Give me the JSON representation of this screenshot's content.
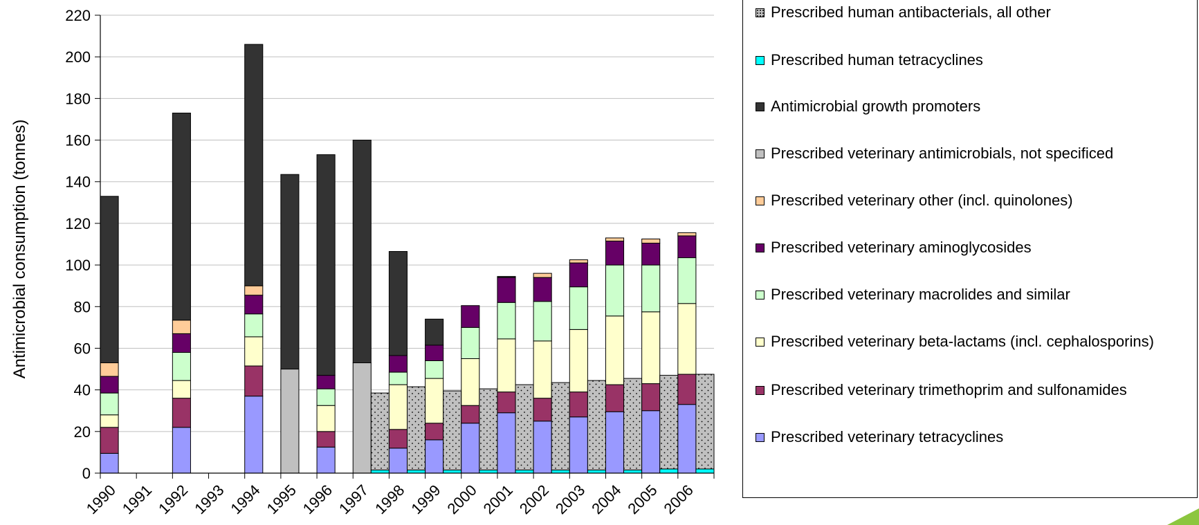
{
  "chart_data": {
    "type": "bar",
    "stacked": true,
    "ylabel": "Antimicrobial consumption  (tonnes)",
    "xlabel": "",
    "ylim": [
      0,
      220
    ],
    "yticks": [
      0,
      20,
      40,
      60,
      80,
      100,
      120,
      140,
      160,
      180,
      200,
      220
    ],
    "categories": [
      "1990",
      "1991",
      "1992",
      "1993",
      "1994",
      "1995",
      "1996",
      "1997",
      "1998",
      "1999",
      "2000",
      "2001",
      "2002",
      "2003",
      "2004",
      "2005",
      "2006"
    ],
    "gridlines": true,
    "legend_position": "right",
    "series": [
      {
        "name": "Prescribed veterinary tetracyclines",
        "group": "veterinary",
        "color": "#9999ff",
        "values": [
          9.5,
          null,
          22,
          null,
          37,
          null,
          12.5,
          null,
          12,
          16,
          24,
          29,
          25,
          27,
          29.5,
          30,
          33
        ]
      },
      {
        "name": "Prescribed veterinary trimethoprim and sulfonamides",
        "group": "veterinary",
        "color": "#993366",
        "values": [
          12.5,
          null,
          14,
          null,
          14.5,
          null,
          7.5,
          null,
          9,
          8,
          8.5,
          10,
          11,
          12,
          13,
          13,
          14.5
        ]
      },
      {
        "name": "Prescribed veterinary beta-lactams (incl. cephalosporins)",
        "group": "veterinary",
        "color": "#ffffcc",
        "values": [
          6,
          null,
          8.5,
          null,
          14,
          null,
          12.5,
          null,
          21.5,
          21.5,
          22.5,
          25.5,
          27.5,
          30,
          33,
          34.5,
          34
        ]
      },
      {
        "name": "Prescribed veterinary macrolides and similar",
        "group": "veterinary",
        "color": "#ccffcc",
        "values": [
          10.5,
          null,
          13.5,
          null,
          11,
          null,
          8,
          null,
          6,
          8.5,
          15,
          17.5,
          19,
          20.5,
          24.5,
          22.5,
          22
        ]
      },
      {
        "name": "Prescribed veterinary aminoglycosides",
        "group": "veterinary",
        "color": "#660066",
        "values": [
          8,
          null,
          9,
          null,
          9,
          null,
          6.5,
          null,
          8,
          7.5,
          10.5,
          12,
          11.5,
          11.5,
          11.5,
          10.5,
          10.5
        ]
      },
      {
        "name": "Prescribed veterinary other (incl. quinolones)",
        "group": "veterinary",
        "color": "#ffcc99",
        "values": [
          6.5,
          null,
          6.5,
          null,
          4.5,
          null,
          0,
          null,
          0,
          0,
          0,
          0,
          2,
          1.5,
          1.5,
          2,
          1.5
        ]
      },
      {
        "name": "Prescribed veterinary antimicrobials, not specificed",
        "group": "veterinary",
        "color": "#c0c0c0",
        "values": [
          null,
          null,
          null,
          null,
          null,
          50,
          null,
          53,
          null,
          null,
          null,
          null,
          null,
          null,
          null,
          null,
          null
        ]
      },
      {
        "name": "Antimicrobial growth promoters",
        "group": "veterinary",
        "color": "#333333",
        "values": [
          80,
          null,
          99.5,
          null,
          116,
          93.5,
          106,
          107,
          50,
          12.5,
          0,
          0.5,
          0,
          0,
          0,
          0,
          0
        ]
      },
      {
        "name": "Prescribed human tetracyclines",
        "group": "human",
        "color": "#00ffff",
        "values": [
          null,
          null,
          null,
          null,
          null,
          null,
          null,
          1.5,
          1.5,
          1.5,
          1.5,
          1.5,
          1.5,
          1.5,
          1.5,
          2,
          2
        ]
      },
      {
        "name": "Prescribed human antibacterials, all other",
        "group": "human",
        "color": "#c0c0c0",
        "pattern": "dots",
        "values": [
          null,
          null,
          null,
          null,
          null,
          null,
          null,
          37,
          40,
          38,
          39,
          41,
          42,
          43,
          44,
          45,
          45.5
        ]
      }
    ]
  },
  "legend": {
    "items": [
      {
        "label": "Prescribed human antibacterials, all other",
        "color": "#c0c0c0",
        "pattern": "dots"
      },
      {
        "label": "Prescribed human tetracyclines",
        "color": "#00ffff"
      },
      {
        "label": "Antimicrobial growth promoters",
        "color": "#333333"
      },
      {
        "label": "Prescribed veterinary antimicrobials, not specificed",
        "color": "#c0c0c0"
      },
      {
        "label": "Prescribed veterinary other (incl. quinolones)",
        "color": "#ffcc99"
      },
      {
        "label": "Prescribed veterinary aminoglycosides",
        "color": "#660066"
      },
      {
        "label": "Prescribed veterinary macrolides and similar",
        "color": "#ccffcc"
      },
      {
        "label": "Prescribed veterinary beta-lactams (incl. cephalosporins)",
        "color": "#ffffcc"
      },
      {
        "label": "Prescribed veterinary trimethoprim and sulfonamides",
        "color": "#993366"
      },
      {
        "label": "Prescribed veterinary tetracyclines",
        "color": "#9999ff"
      }
    ]
  }
}
